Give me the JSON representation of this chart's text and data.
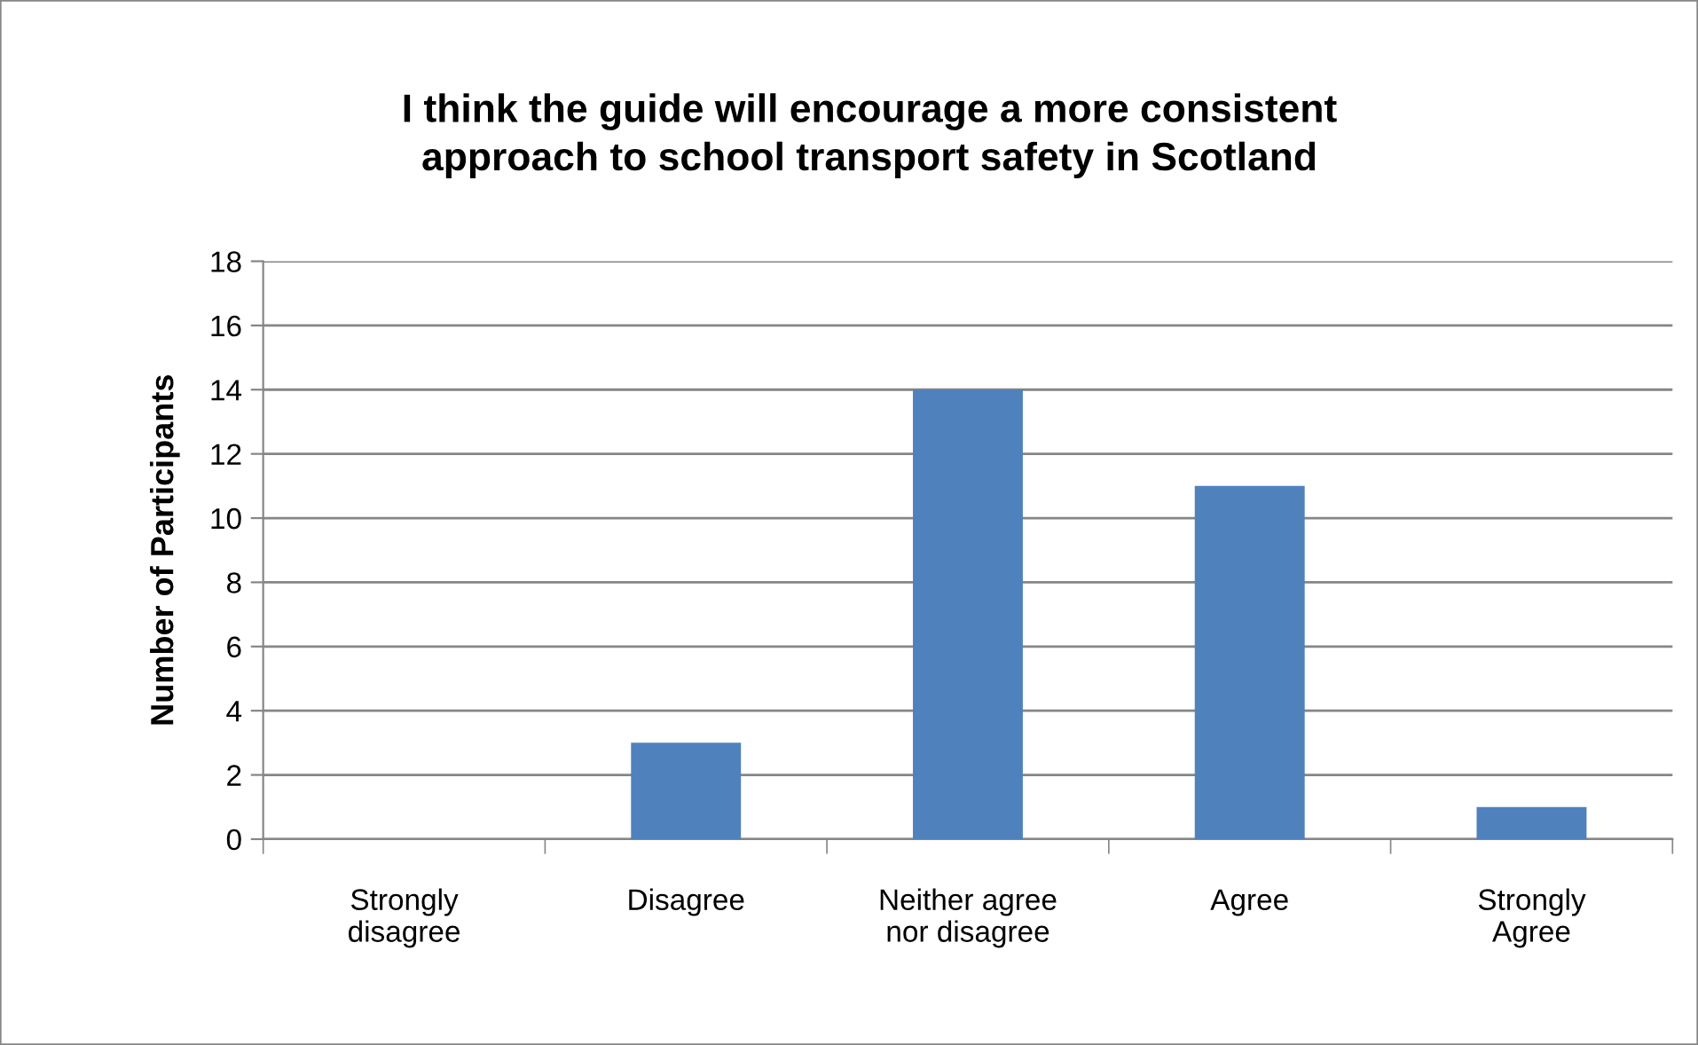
{
  "chart_data": {
    "type": "bar",
    "title": "I think the guide will encourage a more consistent\napproach to school transport safety in Scotland",
    "ylabel": "Number of Participants",
    "categories": [
      "Strongly\ndisagree",
      "Disagree",
      "Neither agree\nnor disagree",
      "Agree",
      "Strongly\nAgree"
    ],
    "values": [
      0,
      3,
      14,
      11,
      1
    ],
    "color": "#4f81bd",
    "ylim": [
      0,
      18
    ],
    "yticks": [
      0,
      2,
      4,
      6,
      8,
      10,
      12,
      14,
      16,
      18
    ],
    "grid": "y",
    "legend": false
  }
}
